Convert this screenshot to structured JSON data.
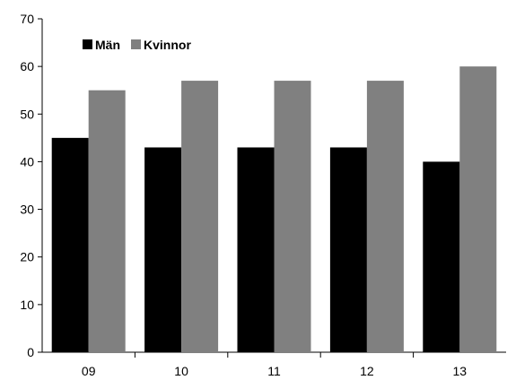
{
  "chart_data": {
    "type": "bar",
    "title": "",
    "xlabel": "",
    "ylabel": "",
    "categories": [
      "09",
      "10",
      "11",
      "12",
      "13"
    ],
    "series": [
      {
        "name": "Män",
        "values": [
          45,
          43,
          43,
          43,
          40
        ],
        "color": "#000000"
      },
      {
        "name": "Kvinnor",
        "values": [
          55,
          57,
          57,
          57,
          60
        ],
        "color": "#808080"
      }
    ],
    "ylim": [
      0,
      70
    ],
    "yticks": [
      "0",
      "10",
      "20",
      "30",
      "40",
      "50",
      "60",
      "70"
    ],
    "grid": false,
    "legend_position": "top-left"
  }
}
